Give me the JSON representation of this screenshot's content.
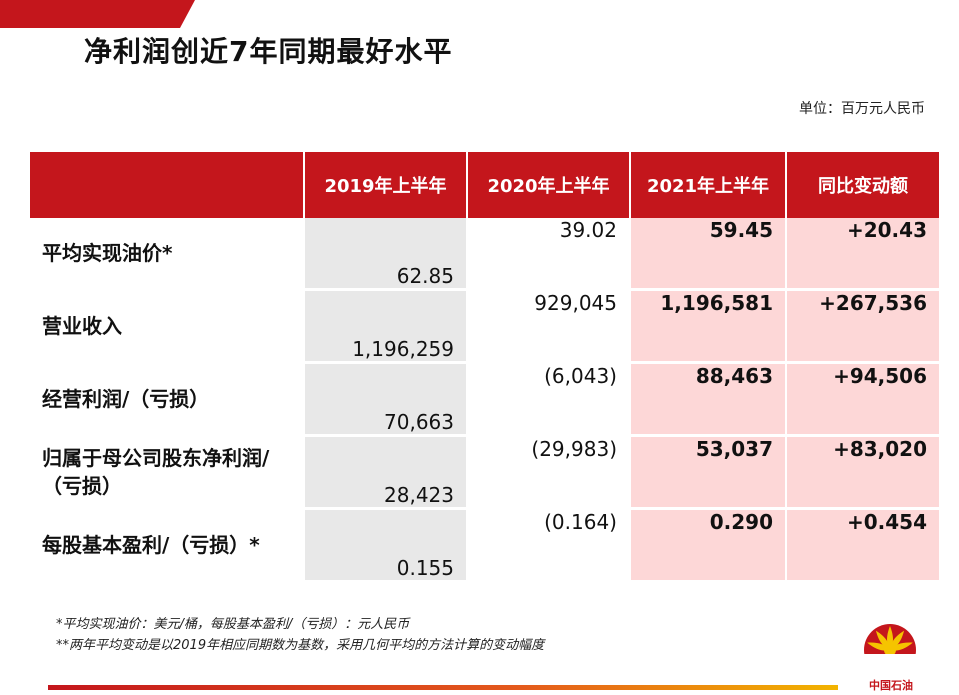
{
  "title": "净利润创近7年同期最好水平",
  "unit": "单位：百万元人民币",
  "columns": [
    "2019年上半年",
    "2020年上半年",
    "2021年上半年",
    "同比变动额"
  ],
  "rows": [
    {
      "label": "平均实现油价*",
      "v2019": "62.85",
      "v2020": "39.02",
      "v2021": "59.45",
      "delta": "+20.43"
    },
    {
      "label": "营业收入",
      "v2019": "1,196,259",
      "v2020": "929,045",
      "v2021": "1,196,581",
      "delta": "+267,536"
    },
    {
      "label": "经营利润/（亏损）",
      "v2019": "70,663",
      "v2020": "(6,043)",
      "v2021": "88,463",
      "delta": "+94,506"
    },
    {
      "label": "归属于母公司股东净利润/（亏损）",
      "v2019": "28,423",
      "v2020": "(29,983)",
      "v2021": "53,037",
      "delta": "+83,020"
    },
    {
      "label": "每股基本盈利/（亏损）*",
      "v2019": "0.155",
      "v2020": "(0.164)",
      "v2021": "0.290",
      "delta": "+0.454"
    }
  ],
  "footnotes": [
    "*平均实现油价：美元/桶，每股基本盈利/（亏损）：元人民币",
    "**两年平均变动是以2019年相应同期数为基数，采用几何平均的方法计算的变动幅度"
  ],
  "logo_text": "中国石油",
  "colors": {
    "brand_red": "#c4161c",
    "highlight_pink": "#fdd7d7",
    "grey_cell": "#e8e8e8"
  }
}
